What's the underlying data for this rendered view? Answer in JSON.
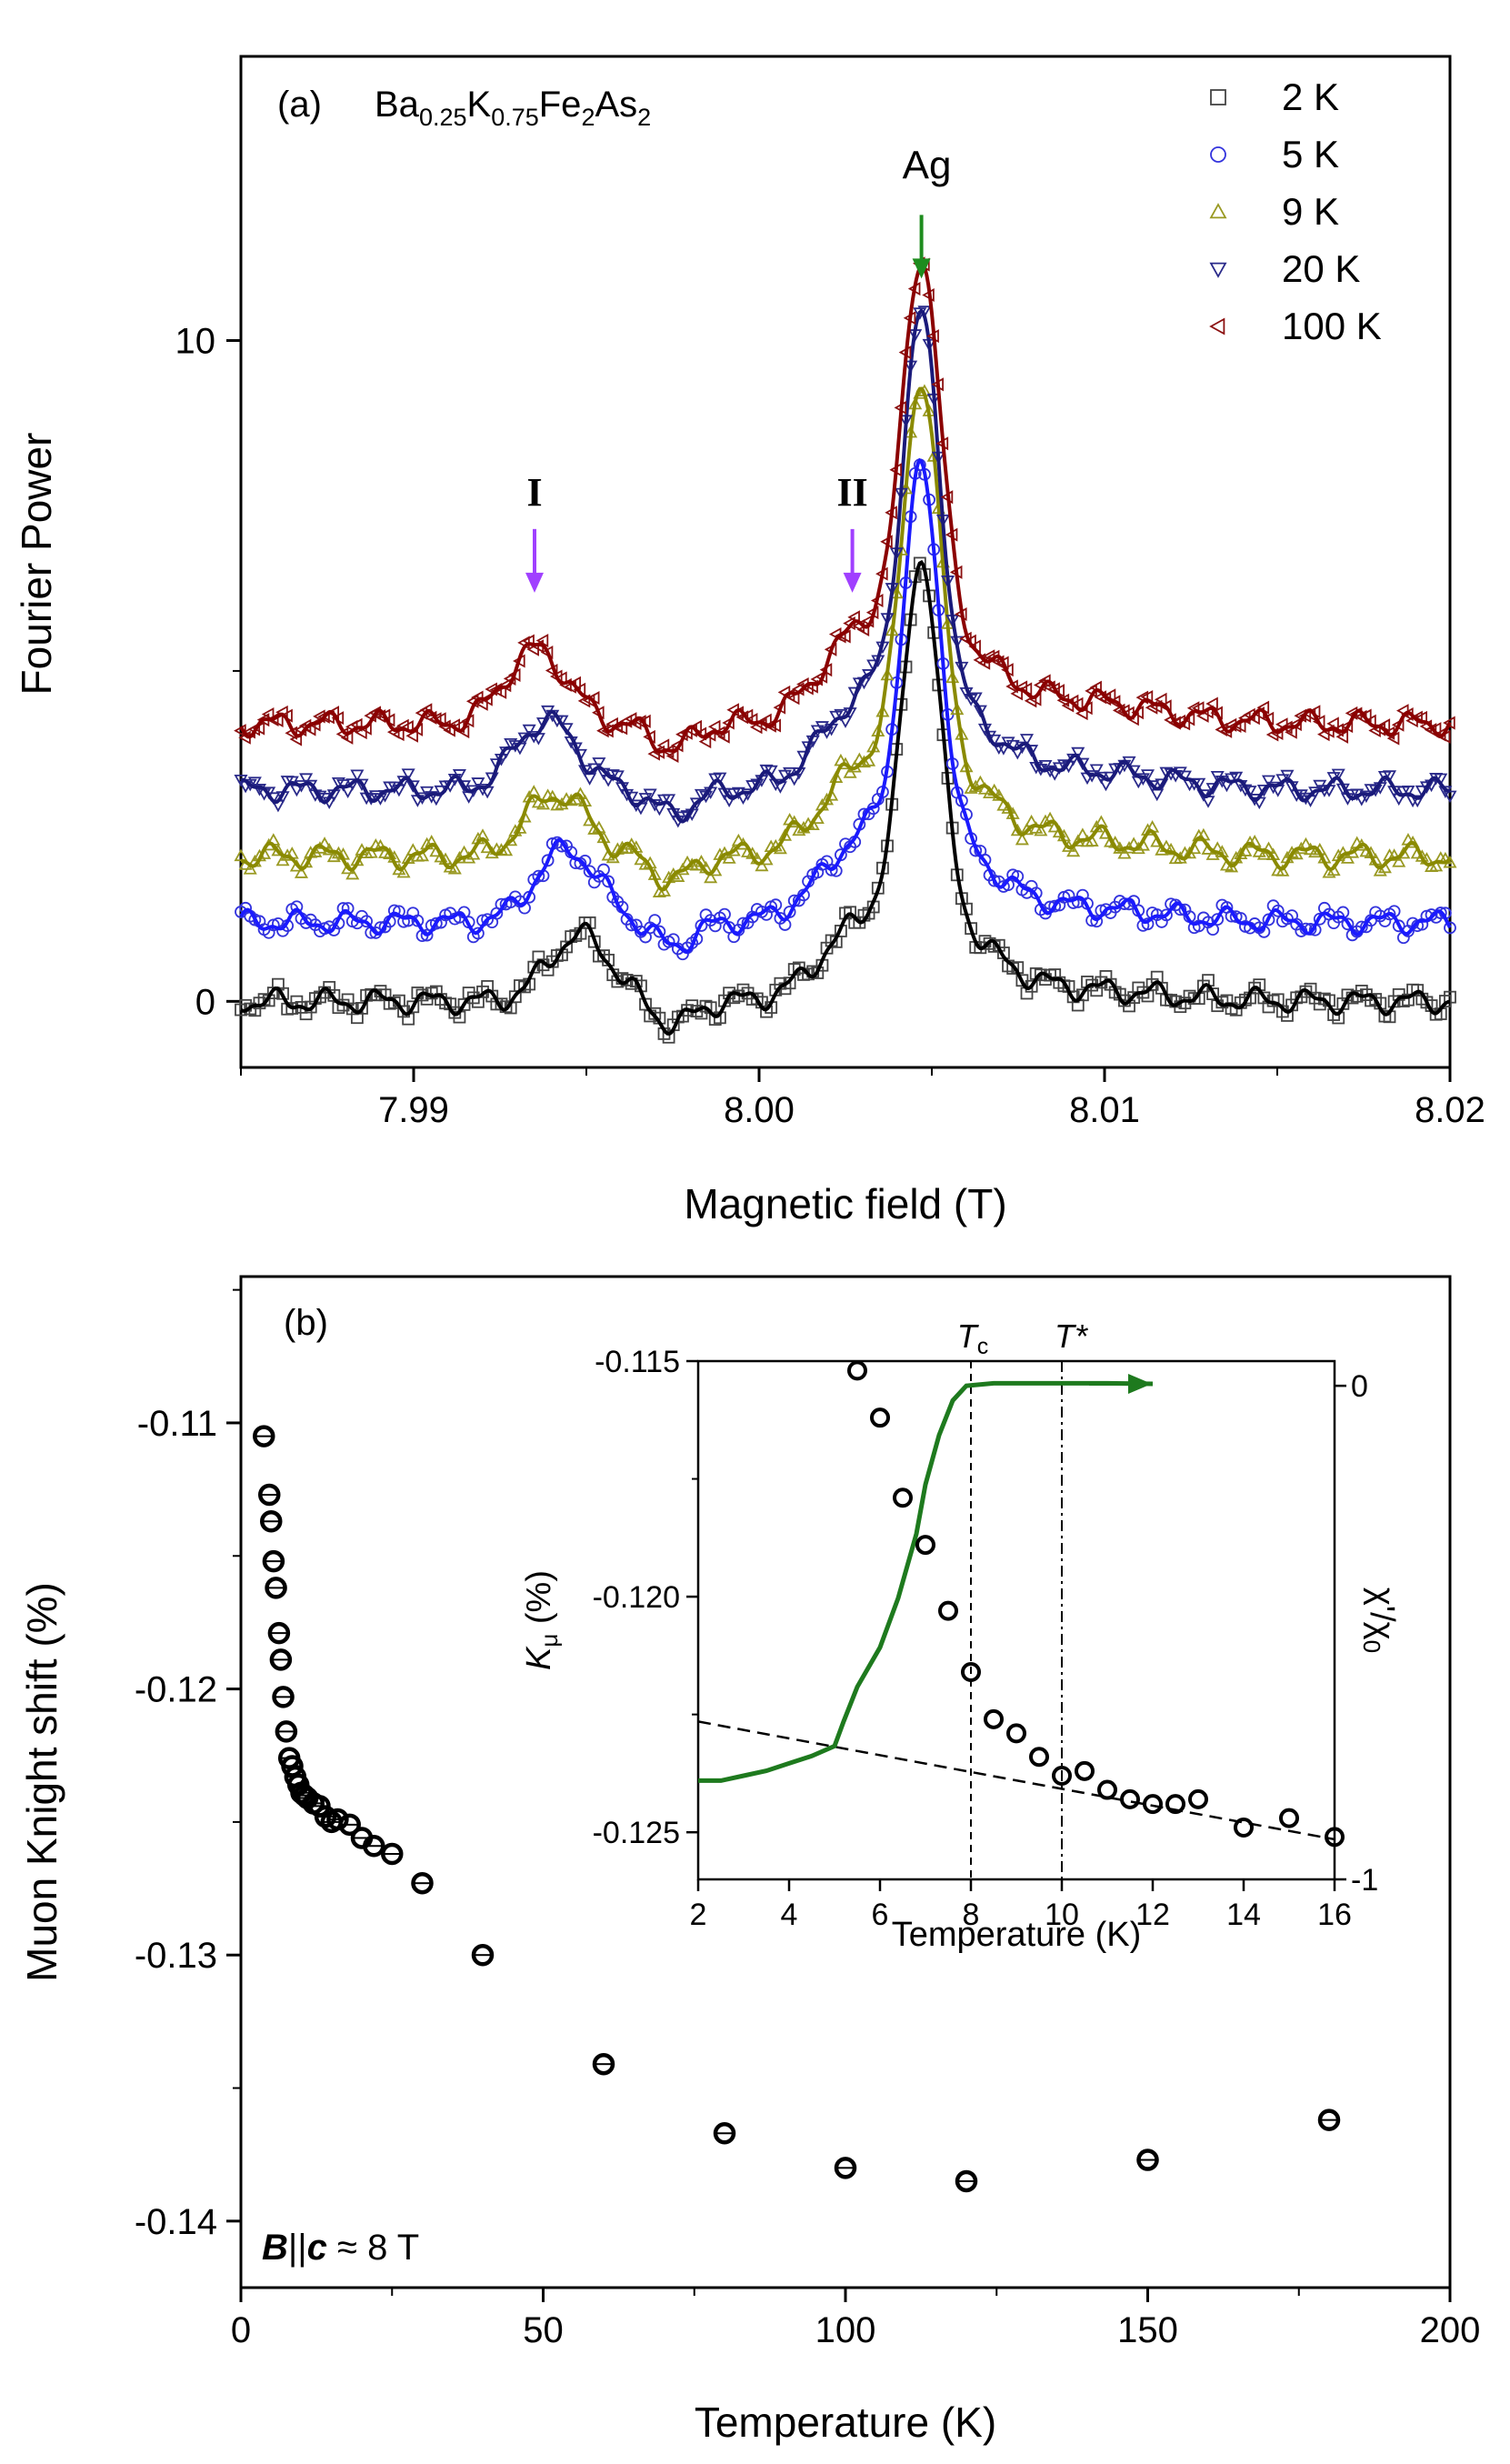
{
  "chart_data": [
    {
      "panel": "(a)",
      "type": "line",
      "compound": {
        "base": "Ba",
        "s1": "0.25",
        "k": "K",
        "s2": "0.75",
        "fe": "Fe",
        "s3": "2",
        "as": "As",
        "s4": "2"
      },
      "xlabel": "Magnetic field (T)",
      "ylabel": "Fourier Power",
      "xlim": [
        7.985,
        8.02
      ],
      "ylim": [
        -1,
        14.3
      ],
      "xticks": [
        {
          "v": 7.99,
          "label": "7.99"
        },
        {
          "v": 8.0,
          "label": "8.00"
        },
        {
          "v": 8.01,
          "label": "8.01"
        },
        {
          "v": 8.02,
          "label": "8.02"
        }
      ],
      "yticks": [
        {
          "v": 0,
          "label": "0"
        },
        {
          "v": 10,
          "label": "10"
        }
      ],
      "annotations": [
        {
          "text": "Ag",
          "x": 8.0047,
          "y": 11.9,
          "arrow_color": "#1e8c1e"
        },
        {
          "text": "I",
          "x": 7.9935,
          "y": 6.9,
          "arrow_color": "#a040ff"
        },
        {
          "text": "II",
          "x": 8.0027,
          "y": 6.9,
          "arrow_color": "#a040ff"
        }
      ],
      "legend_position": "top-right",
      "series": [
        {
          "name": "2 K",
          "marker": "square",
          "color": "#000000",
          "marker_color": "#444444",
          "offset": 0,
          "peak": 6.6,
          "s1": 1.0,
          "s2": 0.52,
          "s3": 0.18,
          "wig": 0.14
        },
        {
          "name": "5 K",
          "marker": "circle",
          "color": "#1a1aff",
          "marker_color": "#3333dd",
          "offset": 1.2,
          "peak": 7.9,
          "s1": 1.1,
          "s2": 0.58,
          "s3": 0.22,
          "wig": 0.13
        },
        {
          "name": "9 K",
          "marker": "triangle-up",
          "color": "#8a8a00",
          "marker_color": "#999922",
          "offset": 2.2,
          "peak": 9.3,
          "s1": 0.95,
          "s2": 0.62,
          "s3": 0.26,
          "wig": 0.15
        },
        {
          "name": "20 K",
          "marker": "triangle-down",
          "color": "#1a1a7a",
          "marker_color": "#2a2a8a",
          "offset": 3.2,
          "peak": 10.2,
          "s1": 1.05,
          "s2": 0.66,
          "s3": 0.3,
          "wig": 0.13
        },
        {
          "name": "100 K",
          "marker": "triangle-left",
          "color": "#8b0000",
          "marker_color": "#8b1010",
          "offset": 4.2,
          "peak": 11.1,
          "s1": 1.12,
          "s2": 0.72,
          "s3": 0.35,
          "wig": 0.14
        }
      ]
    },
    {
      "panel": "(b)",
      "type": "scatter",
      "xlabel": "Temperature (K)",
      "ylabel": "Muon Knight shift (%)",
      "field_label": {
        "b": "B",
        "sep": "||",
        "c": "c",
        "rest": " ≈ 8 T"
      },
      "xlim": [
        0,
        200
      ],
      "ylim": [
        -0.1425,
        -0.1045
      ],
      "xticks": [
        {
          "v": 0,
          "label": "0"
        },
        {
          "v": 50,
          "label": "50"
        },
        {
          "v": 100,
          "label": "100"
        },
        {
          "v": 150,
          "label": "150"
        },
        {
          "v": 200,
          "label": "200"
        }
      ],
      "yticks": [
        {
          "v": -0.11,
          "label": "-0.11"
        },
        {
          "v": -0.12,
          "label": "-0.12"
        },
        {
          "v": -0.13,
          "label": "-0.13"
        },
        {
          "v": -0.14,
          "label": "-0.14"
        }
      ],
      "points": [
        [
          3.8,
          -0.1105
        ],
        [
          4.7,
          -0.1127
        ],
        [
          5.0,
          -0.1137
        ],
        [
          5.4,
          -0.1152
        ],
        [
          5.8,
          -0.1162
        ],
        [
          6.3,
          -0.1179
        ],
        [
          6.6,
          -0.1189
        ],
        [
          7.0,
          -0.1203
        ],
        [
          7.5,
          -0.1216
        ],
        [
          8.0,
          -0.1226
        ],
        [
          8.5,
          -0.1229
        ],
        [
          9.0,
          -0.1233
        ],
        [
          9.5,
          -0.1236
        ],
        [
          10.0,
          -0.1239
        ],
        [
          10.5,
          -0.124
        ],
        [
          11.0,
          -0.1241
        ],
        [
          12.0,
          -0.1243
        ],
        [
          13.0,
          -0.1244
        ],
        [
          14.0,
          -0.1248
        ],
        [
          15.0,
          -0.125
        ],
        [
          16.0,
          -0.1249
        ],
        [
          18.0,
          -0.1251
        ],
        [
          20.0,
          -0.1256
        ],
        [
          22.0,
          -0.1259
        ],
        [
          25.0,
          -0.1262
        ],
        [
          30.0,
          -0.1273
        ],
        [
          40.0,
          -0.13
        ],
        [
          60.0,
          -0.1341
        ],
        [
          80.0,
          -0.1367
        ],
        [
          100.0,
          -0.138
        ],
        [
          120.0,
          -0.1385
        ],
        [
          150.0,
          -0.1377
        ],
        [
          180.0,
          -0.1362
        ]
      ],
      "inset": {
        "xlabel": "Temperature (K)",
        "ylabel_left": {
          "k": "K",
          "sub": "μ",
          "rest": " (%)"
        },
        "ylabel_right": {
          "a": "χ'/χ",
          "sub": "0"
        },
        "xlim": [
          2,
          16
        ],
        "ylim": [
          -0.126,
          -0.115
        ],
        "y2lim": [
          -1,
          0.05
        ],
        "xticks": [
          {
            "v": 2,
            "label": "2"
          },
          {
            "v": 4,
            "label": "4"
          },
          {
            "v": 6,
            "label": "6"
          },
          {
            "v": 8,
            "label": "8"
          },
          {
            "v": 10,
            "label": "10"
          },
          {
            "v": 12,
            "label": "12"
          },
          {
            "v": 14,
            "label": "14"
          },
          {
            "v": 16,
            "label": "16"
          }
        ],
        "yticks": [
          {
            "v": -0.115,
            "label": "-0.115"
          },
          {
            "v": -0.12,
            "label": "-0.120"
          },
          {
            "v": -0.125,
            "label": "-0.125"
          }
        ],
        "y2ticks": [
          {
            "v": 0,
            "label": "0"
          },
          {
            "v": -1,
            "label": "-1"
          }
        ],
        "tc": {
          "label": "T",
          "sub": "c",
          "x": 8
        },
        "tstar": {
          "label": "T*",
          "x": 10
        },
        "points": [
          [
            5.5,
            -0.1152
          ],
          [
            6.0,
            -0.1162
          ],
          [
            6.5,
            -0.1179
          ],
          [
            7.0,
            -0.1189
          ],
          [
            7.5,
            -0.1203
          ],
          [
            8.0,
            -0.1216
          ],
          [
            8.5,
            -0.1226
          ],
          [
            9.0,
            -0.1229
          ],
          [
            9.5,
            -0.1234
          ],
          [
            10.0,
            -0.1238
          ],
          [
            10.5,
            -0.1237
          ],
          [
            11.0,
            -0.1241
          ],
          [
            11.5,
            -0.1243
          ],
          [
            12.0,
            -0.1244
          ],
          [
            12.5,
            -0.1244
          ],
          [
            13.0,
            -0.1243
          ],
          [
            14.0,
            -0.1249
          ],
          [
            15.0,
            -0.1247
          ],
          [
            16.0,
            -0.1251
          ]
        ],
        "baseline": [
          [
            2,
            -0.12265
          ],
          [
            16,
            -0.12515
          ]
        ],
        "chi_color": "#1e7a1e",
        "chi": [
          [
            2.0,
            -0.8
          ],
          [
            2.5,
            -0.8
          ],
          [
            3.0,
            -0.79
          ],
          [
            3.5,
            -0.78
          ],
          [
            4.0,
            -0.765
          ],
          [
            4.5,
            -0.75
          ],
          [
            5.0,
            -0.73
          ],
          [
            5.2,
            -0.68
          ],
          [
            5.5,
            -0.61
          ],
          [
            6.0,
            -0.53
          ],
          [
            6.4,
            -0.43
          ],
          [
            6.8,
            -0.3
          ],
          [
            7.0,
            -0.2
          ],
          [
            7.3,
            -0.1
          ],
          [
            7.6,
            -0.03
          ],
          [
            7.9,
            0.0
          ],
          [
            8.5,
            0.005
          ],
          [
            10.0,
            0.005
          ],
          [
            11.0,
            0.005
          ],
          [
            12.0,
            0.004
          ]
        ]
      }
    }
  ]
}
